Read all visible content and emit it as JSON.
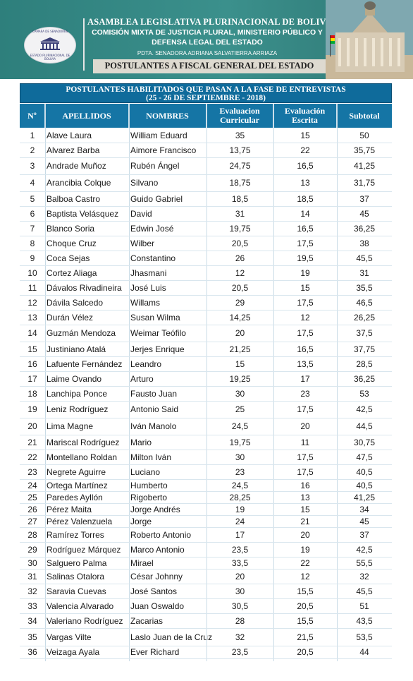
{
  "header": {
    "logo_top_text": "CÁMARA DE SENADORES",
    "logo_bottom_text": "ESTADO PLURINACIONAL DE BOLIVIA",
    "line1": "ASAMBLEA LEGISLATIVA PLURINACIONAL DE BOLIVIA",
    "line2": "COMISIÓN MIXTA DE JUSTICIA PLURAL, MINISTERIO PÚBLICO Y",
    "line3": "DEFENSA LEGAL DEL ESTADO",
    "line4": "PDTA. SENADORA ADRIANA SALVATIERRA ARRIAZA",
    "line5": "POSTULANTES A FISCAL GENERAL DEL ESTADO",
    "colors": {
      "band": "#3b908c",
      "table_header": "#1575a5",
      "title_bar": "#0f6b9b"
    }
  },
  "table": {
    "title_line1": "POSTULANTES HABILITADOS QUE PASAN A LA FASE DE ENTREVISTAS",
    "title_line2": "(25 - 26 DE SEPTIEMBRE - 2018)",
    "columns": {
      "n": "Nº",
      "apellidos": "APELLIDOS",
      "nombres": "NOMBRES",
      "curricular": "Evaluacion Curricular",
      "escrita": "Evaluación Escrita",
      "subtotal": "Subtotal"
    },
    "rows": [
      {
        "n": "1",
        "apellidos": "Alave Laura",
        "nombres": "William Eduard",
        "curricular": "35",
        "escrita": "15",
        "subtotal": "50"
      },
      {
        "n": "2",
        "apellidos": "Alvarez Barba",
        "nombres": "Aimore Francisco",
        "curricular": "13,75",
        "escrita": "22",
        "subtotal": "35,75"
      },
      {
        "n": "3",
        "apellidos": "Andrade Muñoz",
        "nombres": "Rubén Ángel",
        "curricular": "24,75",
        "escrita": "16,5",
        "subtotal": "41,25"
      },
      {
        "n": "4",
        "apellidos": "Arancibia Colque",
        "nombres": " Silvano",
        "curricular": "18,75",
        "escrita": "13",
        "subtotal": "31,75"
      },
      {
        "n": "5",
        "apellidos": "Balboa Castro",
        "nombres": "Guido Gabriel",
        "curricular": "18,5",
        "escrita": "18,5",
        "subtotal": "37"
      },
      {
        "n": "6",
        "apellidos": "Baptista Velásquez",
        "nombres": "David",
        "curricular": "31",
        "escrita": "14",
        "subtotal": "45"
      },
      {
        "n": "7",
        "apellidos": "Blanco Soria",
        "nombres": "Edwin José",
        "curricular": "19,75",
        "escrita": "16,5",
        "subtotal": "36,25"
      },
      {
        "n": "8",
        "apellidos": "Choque Cruz",
        "nombres": "Wilber",
        "curricular": "20,5",
        "escrita": "17,5",
        "subtotal": "38"
      },
      {
        "n": "9",
        "apellidos": "Coca Sejas",
        "nombres": "Constantino",
        "curricular": "26",
        "escrita": "19,5",
        "subtotal": "45,5"
      },
      {
        "n": "10",
        "apellidos": "Cortez Aliaga",
        "nombres": "Jhasmani",
        "curricular": "12",
        "escrita": "19",
        "subtotal": "31"
      },
      {
        "n": "11",
        "apellidos": "Dávalos Rivadineira",
        "nombres": "José Luis",
        "curricular": "20,5",
        "escrita": "15",
        "subtotal": "35,5"
      },
      {
        "n": "12",
        "apellidos": "Dávila Salcedo",
        "nombres": "Willams",
        "curricular": "29",
        "escrita": "17,5",
        "subtotal": "46,5"
      },
      {
        "n": "13",
        "apellidos": "Durán Vélez",
        "nombres": "Susan Wilma",
        "curricular": "14,25",
        "escrita": "12",
        "subtotal": "26,25"
      },
      {
        "n": "14",
        "apellidos": "Guzmán Mendoza",
        "nombres": "Weimar Teófilo",
        "curricular": "20",
        "escrita": "17,5",
        "subtotal": "37,5"
      },
      {
        "n": "15",
        "apellidos": "Justiniano Atalá",
        "nombres": "Jerjes Enrique",
        "curricular": "21,25",
        "escrita": "16,5",
        "subtotal": "37,75"
      },
      {
        "n": "16",
        "apellidos": "Lafuente Fernández",
        "nombres": "Leandro",
        "curricular": "15",
        "escrita": "13,5",
        "subtotal": "28,5"
      },
      {
        "n": "17",
        "apellidos": "Laime Ovando",
        "nombres": "Arturo",
        "curricular": "19,25",
        "escrita": "17",
        "subtotal": "36,25"
      },
      {
        "n": "18",
        "apellidos": "Lanchipa Ponce",
        "nombres": "Fausto Juan",
        "curricular": "30",
        "escrita": "23",
        "subtotal": "53"
      },
      {
        "n": "19",
        "apellidos": "Leniz Rodríguez",
        "nombres": "Antonio Said",
        "curricular": "25",
        "escrita": "17,5",
        "subtotal": "42,5"
      },
      {
        "n": "20",
        "apellidos": "Lima Magne",
        "nombres": "Iván Manolo",
        "curricular": "24,5",
        "escrita": "20",
        "subtotal": "44,5"
      },
      {
        "n": "21",
        "apellidos": "Mariscal Rodríguez",
        "nombres": "Mario",
        "curricular": "19,75",
        "escrita": "11",
        "subtotal": "30,75"
      },
      {
        "n": "22",
        "apellidos": "Montellano Roldan",
        "nombres": "Milton Iván",
        "curricular": "30",
        "escrita": "17,5",
        "subtotal": "47,5"
      },
      {
        "n": "23",
        "apellidos": "Negrete Aguirre",
        "nombres": "Luciano",
        "curricular": "23",
        "escrita": "17,5",
        "subtotal": "40,5"
      },
      {
        "n": "24",
        "apellidos": "Ortega Martínez",
        "nombres": "Humberto",
        "curricular": "24,5",
        "escrita": "16",
        "subtotal": "40,5"
      },
      {
        "n": "25",
        "apellidos": "Paredes Ayllón",
        "nombres": "Rigoberto",
        "curricular": "28,25",
        "escrita": "13",
        "subtotal": "41,25"
      },
      {
        "n": "26",
        "apellidos": "Pérez Maita",
        "nombres": "Jorge Andrés",
        "curricular": "19",
        "escrita": "15",
        "subtotal": "34"
      },
      {
        "n": "27",
        "apellidos": "Pérez Valenzuela",
        "nombres": "Jorge",
        "curricular": "24",
        "escrita": "21",
        "subtotal": "45"
      },
      {
        "n": "28",
        "apellidos": "Ramírez Torres",
        "nombres": "Roberto Antonio",
        "curricular": "17",
        "escrita": "20",
        "subtotal": "37"
      },
      {
        "n": "29",
        "apellidos": "Rodríguez Márquez",
        "nombres": "Marco Antonio",
        "curricular": "23,5",
        "escrita": "19",
        "subtotal": "42,5"
      },
      {
        "n": "30",
        "apellidos": "Salguero Palma",
        "nombres": "Mirael",
        "curricular": "33,5",
        "escrita": "22",
        "subtotal": "55,5"
      },
      {
        "n": "31",
        "apellidos": "Salinas Otalora",
        "nombres": "César Johnny",
        "curricular": "20",
        "escrita": "12",
        "subtotal": "32"
      },
      {
        "n": "32",
        "apellidos": "Saravia Cuevas",
        "nombres": "José Santos",
        "curricular": "30",
        "escrita": "15,5",
        "subtotal": "45,5"
      },
      {
        "n": "33",
        "apellidos": "Valencia Alvarado",
        "nombres": "Juan Oswaldo",
        "curricular": "30,5",
        "escrita": "20,5",
        "subtotal": "51"
      },
      {
        "n": "34",
        "apellidos": "Valeriano Rodríguez",
        "nombres": "Zacarias",
        "curricular": "28",
        "escrita": "15,5",
        "subtotal": "43,5"
      },
      {
        "n": "35",
        "apellidos": "Vargas Vilte",
        "nombres": "Laslo Juan de la Cruz",
        "curricular": "32",
        "escrita": "21,5",
        "subtotal": "53,5"
      },
      {
        "n": "36",
        "apellidos": "Veizaga Ayala",
        "nombres": "Ever Richard",
        "curricular": "23,5",
        "escrita": "20,5",
        "subtotal": "44"
      }
    ]
  }
}
